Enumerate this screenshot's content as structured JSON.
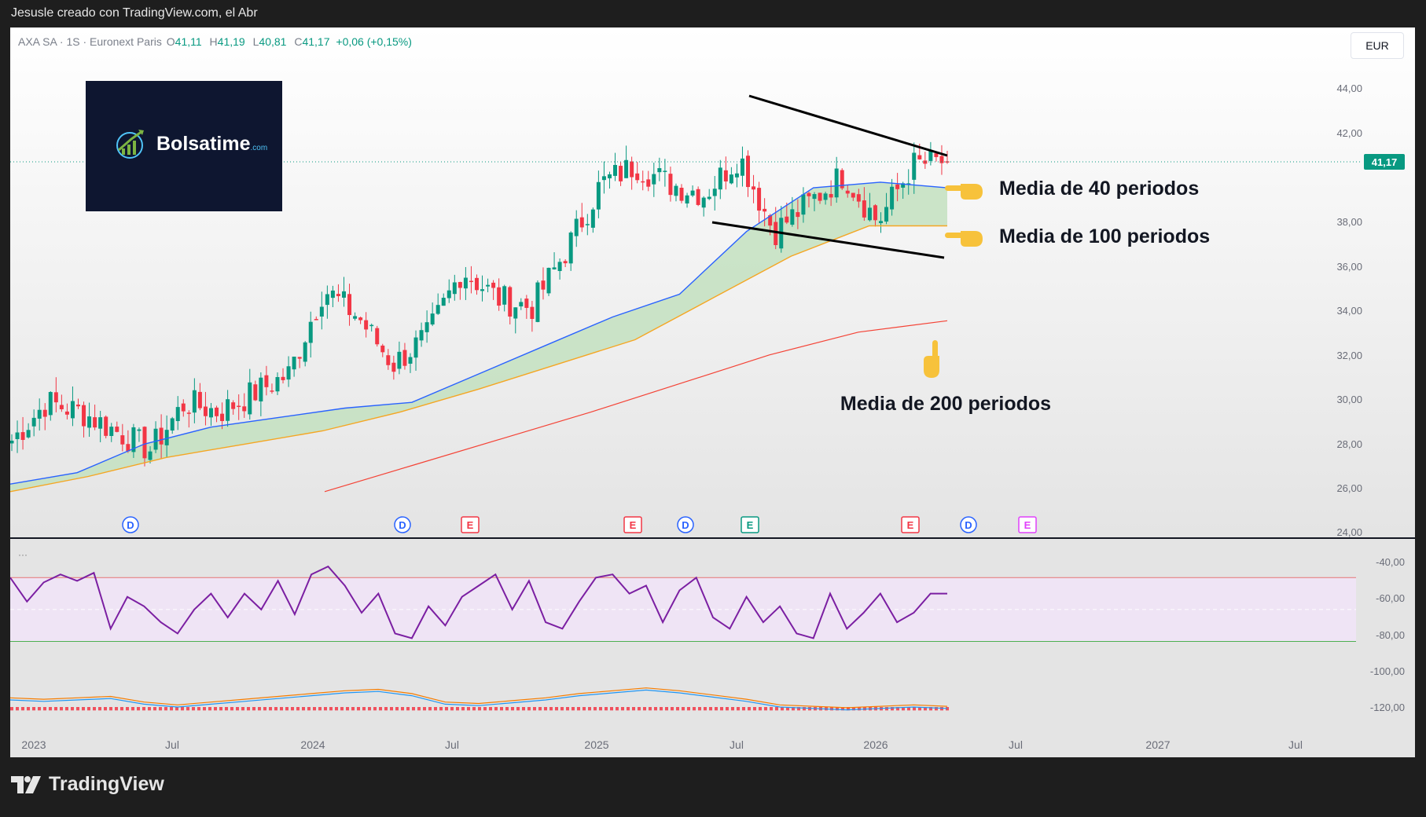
{
  "top_caption": "Jesusle creado con TradingView.com, el Abr",
  "legend": {
    "symbol": "AXA SA · 1S · Euronext Paris",
    "o_label": "O",
    "o": "41,11",
    "h_label": "H",
    "h": "41,19",
    "l_label": "L",
    "l": "40,81",
    "c_label": "C",
    "c": "41,17",
    "change": "+0,06 (+0,15%)"
  },
  "currency_button": "EUR",
  "logo": {
    "name": "Bolsatime",
    "suffix": ".com"
  },
  "footer_brand": "TradingView",
  "indicator_dots": "···",
  "colors": {
    "up": "#089981",
    "down": "#f23645",
    "ma40": "#2962ff",
    "ma100": "#f5a623",
    "ma200": "#f44336",
    "rsi": "#7b1fa2",
    "fill": "#c3e0c0",
    "rsi_band": "#efe4f5"
  },
  "chart_data": [
    {
      "type": "candlestick",
      "title": "AXA SA · 1S · Euronext Paris",
      "x_ticks": [
        "2023",
        "Jul",
        "2024",
        "Jul",
        "2025",
        "Jul",
        "2026",
        "Jul",
        "2027",
        "Jul"
      ],
      "y_ticks": [
        "44,00",
        "42,00",
        "38,00",
        "36,00",
        "34,00",
        "32,00",
        "30,00",
        "28,00",
        "26,00",
        "24,00"
      ],
      "ylim": [
        24,
        44.5
      ],
      "last_price_label": "41,17",
      "annotations": [
        "Media de 40 periodos",
        "Media de 100 periodos",
        "Media de 200 periodos"
      ],
      "event_markers": [
        "D",
        "D",
        "E",
        "E",
        "D",
        "E",
        "E",
        "D",
        "E"
      ],
      "series": [
        {
          "name": "Media de 40 periodos",
          "values": [
            24.2,
            24.8,
            26.3,
            27.2,
            27.7,
            28.2,
            28.5,
            30.0,
            31.5,
            33.0,
            34.2,
            37.5,
            39.8,
            40.1,
            39.8
          ]
        },
        {
          "name": "Media de 100 periodos",
          "values": [
            23.8,
            24.6,
            25.6,
            26.3,
            27.0,
            28.0,
            29.2,
            30.5,
            31.8,
            34.0,
            36.2,
            37.8,
            37.8
          ]
        },
        {
          "name": "Media de 200 periodos",
          "values": [
            23.8,
            25.2,
            26.6,
            28.0,
            29.5,
            31.0,
            32.2,
            32.8
          ]
        }
      ],
      "price_path": [
        26.5,
        28.5,
        28.0,
        27.0,
        26.0,
        28.5,
        28.0,
        29.0,
        30.0,
        34.5,
        33.0,
        30.5,
        32.0,
        35.5,
        34.0,
        33.5,
        36.5,
        40.0,
        41.0,
        40.0,
        39.5,
        41.5,
        37.5,
        39.0,
        40.5,
        38.0,
        41.0,
        41.2
      ]
    },
    {
      "type": "line",
      "title": "",
      "y_ticks": [
        "-40,00",
        "-60,00",
        "-80,00",
        "-100,00",
        "-120,00"
      ],
      "ylim": [
        -125,
        -35
      ],
      "bands": [
        -50,
        -70,
        -90
      ],
      "rsi_values": [
        -50,
        -65,
        -53,
        -48,
        -52,
        -47,
        -82,
        -62,
        -68,
        -78,
        -85,
        -70,
        -60,
        -75,
        -60,
        -70,
        -52,
        -73,
        -48,
        -43,
        -55,
        -72,
        -60,
        -85,
        -88,
        -68,
        -80,
        -62,
        -55,
        -48,
        -70,
        -52,
        -78,
        -82,
        -65,
        -50,
        -48,
        -60,
        -55,
        -78,
        -58,
        -50,
        -75,
        -82,
        -62,
        -78,
        -68,
        -85,
        -88,
        -60,
        -82,
        -72,
        -60,
        -78,
        -72,
        -60,
        -60
      ],
      "macd_values": [
        -115,
        -116,
        -115,
        -114,
        -118,
        -120,
        -118,
        -116,
        -114,
        -112,
        -110,
        -109,
        -112,
        -118,
        -119,
        -117,
        -115,
        -112,
        -110,
        -108,
        -110,
        -113,
        -116,
        -120,
        -121,
        -122,
        -121,
        -120,
        -121
      ]
    }
  ]
}
